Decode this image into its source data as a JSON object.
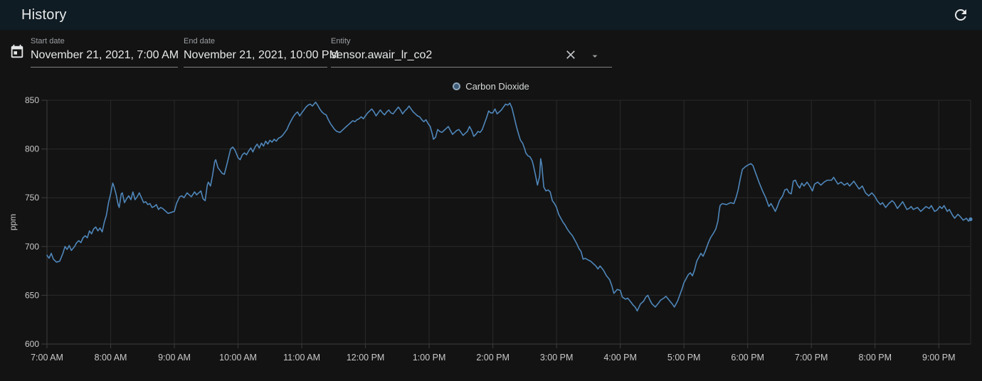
{
  "header": {
    "title": "History",
    "refresh_tooltip": "refresh"
  },
  "filters": {
    "start_date": {
      "label": "Start date",
      "value": "November 21, 2021, 7:00 AM"
    },
    "end_date": {
      "label": "End date",
      "value": "November 21, 2021, 10:00 PM"
    },
    "entity": {
      "label": "Entity",
      "value": "sensor.awair_lr_co2"
    }
  },
  "legend": {
    "label": "Carbon Dioxide"
  },
  "colors": {
    "header_bg": "#101c23",
    "page_bg": "#131313",
    "line": "#4f87bb",
    "grid": "#2a2a2a",
    "axis": "#3d3d3d",
    "tick_text": "#c9c9c9",
    "legend_marker_fill": "#3d5a76",
    "legend_marker_border": "#8fa6b8"
  },
  "chart_data": {
    "type": "line",
    "title": "",
    "series_name": "Carbon Dioxide",
    "unit": "ppm",
    "ylabel": "ppm",
    "xlabel": "",
    "grid": true,
    "legend_position": "top",
    "ylim": [
      600,
      850
    ],
    "xlim_minutes_after_7am": [
      0,
      870
    ],
    "y_ticks": [
      600,
      650,
      700,
      750,
      800,
      850
    ],
    "x_ticks": [
      {
        "t": 0,
        "label": "7:00 AM"
      },
      {
        "t": 60,
        "label": "8:00 AM"
      },
      {
        "t": 120,
        "label": "9:00 AM"
      },
      {
        "t": 180,
        "label": "10:00 AM"
      },
      {
        "t": 240,
        "label": "11:00 AM"
      },
      {
        "t": 300,
        "label": "12:00 PM"
      },
      {
        "t": 360,
        "label": "1:00 PM"
      },
      {
        "t": 420,
        "label": "2:00 PM"
      },
      {
        "t": 480,
        "label": "3:00 PM"
      },
      {
        "t": 540,
        "label": "4:00 PM"
      },
      {
        "t": 600,
        "label": "5:00 PM"
      },
      {
        "t": 660,
        "label": "6:00 PM"
      },
      {
        "t": 720,
        "label": "7:00 PM"
      },
      {
        "t": 780,
        "label": "8:00 PM"
      },
      {
        "t": 840,
        "label": "9:00 PM"
      }
    ],
    "points_t_ppm": [
      [
        0,
        691
      ],
      [
        2,
        688
      ],
      [
        4,
        693
      ],
      [
        6,
        687
      ],
      [
        9,
        684
      ],
      [
        12,
        685
      ],
      [
        15,
        693
      ],
      [
        17,
        700
      ],
      [
        19,
        697
      ],
      [
        21,
        701
      ],
      [
        23,
        696
      ],
      [
        26,
        700
      ],
      [
        28,
        704
      ],
      [
        30,
        706
      ],
      [
        32,
        704
      ],
      [
        34,
        709
      ],
      [
        36,
        711
      ],
      [
        38,
        709
      ],
      [
        40,
        716
      ],
      [
        42,
        713
      ],
      [
        44,
        718
      ],
      [
        46,
        720
      ],
      [
        48,
        716
      ],
      [
        50,
        719
      ],
      [
        52,
        715
      ],
      [
        54,
        725
      ],
      [
        56,
        732
      ],
      [
        58,
        745
      ],
      [
        60,
        754
      ],
      [
        61,
        760
      ],
      [
        62,
        765
      ],
      [
        63,
        762
      ],
      [
        65,
        754
      ],
      [
        67,
        743
      ],
      [
        68,
        740
      ],
      [
        70,
        754
      ],
      [
        71,
        755
      ],
      [
        73,
        745
      ],
      [
        75,
        749
      ],
      [
        77,
        752
      ],
      [
        79,
        748
      ],
      [
        81,
        756
      ],
      [
        83,
        748
      ],
      [
        85,
        751
      ],
      [
        87,
        755
      ],
      [
        89,
        750
      ],
      [
        91,
        745
      ],
      [
        93,
        746
      ],
      [
        95,
        743
      ],
      [
        97,
        744
      ],
      [
        99,
        740
      ],
      [
        101,
        741
      ],
      [
        103,
        743
      ],
      [
        105,
        738
      ],
      [
        107,
        740
      ],
      [
        109,
        739
      ],
      [
        112,
        736
      ],
      [
        114,
        734
      ],
      [
        117,
        735
      ],
      [
        120,
        736
      ],
      [
        122,
        744
      ],
      [
        125,
        751
      ],
      [
        127,
        752
      ],
      [
        129,
        750
      ],
      [
        132,
        755
      ],
      [
        134,
        753
      ],
      [
        136,
        751
      ],
      [
        139,
        756
      ],
      [
        141,
        753
      ],
      [
        143,
        755
      ],
      [
        145,
        757
      ],
      [
        147,
        749
      ],
      [
        149,
        747
      ],
      [
        151,
        763
      ],
      [
        152,
        766
      ],
      [
        154,
        762
      ],
      [
        156,
        773
      ],
      [
        158,
        787
      ],
      [
        159,
        789
      ],
      [
        161,
        781
      ],
      [
        163,
        778
      ],
      [
        165,
        775
      ],
      [
        167,
        774
      ],
      [
        169,
        782
      ],
      [
        171,
        791
      ],
      [
        173,
        800
      ],
      [
        175,
        802
      ],
      [
        177,
        799
      ],
      [
        180,
        791
      ],
      [
        182,
        789
      ],
      [
        184,
        794
      ],
      [
        186,
        796
      ],
      [
        188,
        794
      ],
      [
        190,
        798
      ],
      [
        192,
        801
      ],
      [
        194,
        797
      ],
      [
        196,
        802
      ],
      [
        198,
        805
      ],
      [
        200,
        801
      ],
      [
        202,
        806
      ],
      [
        204,
        803
      ],
      [
        206,
        808
      ],
      [
        208,
        805
      ],
      [
        210,
        809
      ],
      [
        212,
        807
      ],
      [
        214,
        810
      ],
      [
        216,
        808
      ],
      [
        218,
        811
      ],
      [
        220,
        812
      ],
      [
        222,
        814
      ],
      [
        224,
        817
      ],
      [
        226,
        820
      ],
      [
        228,
        825
      ],
      [
        230,
        829
      ],
      [
        232,
        833
      ],
      [
        234,
        836
      ],
      [
        236,
        838
      ],
      [
        238,
        834
      ],
      [
        240,
        837
      ],
      [
        242,
        840
      ],
      [
        244,
        843
      ],
      [
        246,
        845
      ],
      [
        248,
        846
      ],
      [
        250,
        844
      ],
      [
        253,
        848
      ],
      [
        255,
        845
      ],
      [
        257,
        841
      ],
      [
        259,
        838
      ],
      [
        261,
        836
      ],
      [
        263,
        835
      ],
      [
        265,
        830
      ],
      [
        267,
        826
      ],
      [
        269,
        823
      ],
      [
        271,
        820
      ],
      [
        273,
        818
      ],
      [
        276,
        817
      ],
      [
        278,
        819
      ],
      [
        280,
        821
      ],
      [
        282,
        823
      ],
      [
        284,
        825
      ],
      [
        286,
        827
      ],
      [
        288,
        829
      ],
      [
        290,
        828
      ],
      [
        292,
        830
      ],
      [
        294,
        831
      ],
      [
        296,
        833
      ],
      [
        298,
        831
      ],
      [
        300,
        834
      ],
      [
        302,
        837
      ],
      [
        304,
        839
      ],
      [
        306,
        841
      ],
      [
        308,
        838
      ],
      [
        310,
        834
      ],
      [
        312,
        837
      ],
      [
        314,
        840
      ],
      [
        316,
        837
      ],
      [
        318,
        835
      ],
      [
        320,
        838
      ],
      [
        322,
        840
      ],
      [
        324,
        837
      ],
      [
        326,
        836
      ],
      [
        328,
        839
      ],
      [
        331,
        843
      ],
      [
        333,
        840
      ],
      [
        335,
        836
      ],
      [
        337,
        839
      ],
      [
        339,
        841
      ],
      [
        341,
        844
      ],
      [
        343,
        841
      ],
      [
        345,
        838
      ],
      [
        347,
        836
      ],
      [
        349,
        834
      ],
      [
        351,
        833
      ],
      [
        353,
        830
      ],
      [
        355,
        828
      ],
      [
        357,
        830
      ],
      [
        359,
        826
      ],
      [
        361,
        823
      ],
      [
        363,
        815
      ],
      [
        364,
        810
      ],
      [
        366,
        812
      ],
      [
        368,
        820
      ],
      [
        370,
        818
      ],
      [
        372,
        817
      ],
      [
        374,
        819
      ],
      [
        376,
        821
      ],
      [
        378,
        823
      ],
      [
        380,
        819
      ],
      [
        382,
        815
      ],
      [
        384,
        817
      ],
      [
        386,
        819
      ],
      [
        388,
        820
      ],
      [
        390,
        817
      ],
      [
        392,
        814
      ],
      [
        394,
        816
      ],
      [
        396,
        818
      ],
      [
        398,
        823
      ],
      [
        400,
        819
      ],
      [
        402,
        813
      ],
      [
        404,
        815
      ],
      [
        406,
        818
      ],
      [
        408,
        817
      ],
      [
        410,
        820
      ],
      [
        412,
        826
      ],
      [
        414,
        832
      ],
      [
        416,
        839
      ],
      [
        418,
        837
      ],
      [
        420,
        837
      ],
      [
        422,
        841
      ],
      [
        424,
        836
      ],
      [
        426,
        838
      ],
      [
        428,
        840
      ],
      [
        430,
        843
      ],
      [
        432,
        846
      ],
      [
        434,
        845
      ],
      [
        436,
        847
      ],
      [
        438,
        842
      ],
      [
        440,
        833
      ],
      [
        442,
        824
      ],
      [
        444,
        816
      ],
      [
        446,
        809
      ],
      [
        448,
        806
      ],
      [
        450,
        800
      ],
      [
        451,
        796
      ],
      [
        453,
        793
      ],
      [
        455,
        792
      ],
      [
        457,
        788
      ],
      [
        458,
        784
      ],
      [
        460,
        774
      ],
      [
        462,
        763
      ],
      [
        464,
        772
      ],
      [
        465,
        790
      ],
      [
        466,
        784
      ],
      [
        468,
        761
      ],
      [
        470,
        757
      ],
      [
        472,
        758
      ],
      [
        474,
        756
      ],
      [
        476,
        747
      ],
      [
        478,
        744
      ],
      [
        480,
        740
      ],
      [
        482,
        733
      ],
      [
        484,
        729
      ],
      [
        486,
        725
      ],
      [
        488,
        722
      ],
      [
        490,
        718
      ],
      [
        492,
        715
      ],
      [
        495,
        711
      ],
      [
        497,
        707
      ],
      [
        499,
        703
      ],
      [
        501,
        698
      ],
      [
        503,
        695
      ],
      [
        505,
        687
      ],
      [
        507,
        688
      ],
      [
        510,
        686
      ],
      [
        512,
        685
      ],
      [
        514,
        683
      ],
      [
        517,
        680
      ],
      [
        519,
        677
      ],
      [
        521,
        680
      ],
      [
        524,
        676
      ],
      [
        527,
        670
      ],
      [
        530,
        666
      ],
      [
        532,
        660
      ],
      [
        534,
        652
      ],
      [
        537,
        656
      ],
      [
        540,
        655
      ],
      [
        542,
        648
      ],
      [
        545,
        646
      ],
      [
        547,
        647
      ],
      [
        550,
        643
      ],
      [
        552,
        640
      ],
      [
        554,
        638
      ],
      [
        556,
        634
      ],
      [
        559,
        641
      ],
      [
        562,
        644
      ],
      [
        564,
        648
      ],
      [
        566,
        650
      ],
      [
        568,
        645
      ],
      [
        570,
        641
      ],
      [
        573,
        638
      ],
      [
        576,
        642
      ],
      [
        578,
        645
      ],
      [
        581,
        647
      ],
      [
        583,
        649
      ],
      [
        586,
        645
      ],
      [
        589,
        641
      ],
      [
        591,
        638
      ],
      [
        594,
        644
      ],
      [
        596,
        650
      ],
      [
        598,
        656
      ],
      [
        600,
        663
      ],
      [
        602,
        667
      ],
      [
        604,
        671
      ],
      [
        606,
        673
      ],
      [
        608,
        670
      ],
      [
        610,
        676
      ],
      [
        612,
        685
      ],
      [
        614,
        689
      ],
      [
        616,
        693
      ],
      [
        618,
        690
      ],
      [
        620,
        695
      ],
      [
        623,
        704
      ],
      [
        625,
        709
      ],
      [
        628,
        714
      ],
      [
        630,
        718
      ],
      [
        632,
        726
      ],
      [
        633,
        735
      ],
      [
        634,
        742
      ],
      [
        636,
        744
      ],
      [
        640,
        743
      ],
      [
        644,
        745
      ],
      [
        647,
        744
      ],
      [
        649,
        750
      ],
      [
        651,
        758
      ],
      [
        653,
        769
      ],
      [
        655,
        779
      ],
      [
        658,
        782
      ],
      [
        661,
        784
      ],
      [
        663,
        785
      ],
      [
        665,
        783
      ],
      [
        668,
        774
      ],
      [
        671,
        765
      ],
      [
        674,
        757
      ],
      [
        677,
        750
      ],
      [
        680,
        741
      ],
      [
        682,
        744
      ],
      [
        684,
        740
      ],
      [
        686,
        736
      ],
      [
        688,
        741
      ],
      [
        690,
        747
      ],
      [
        693,
        752
      ],
      [
        695,
        758
      ],
      [
        697,
        759
      ],
      [
        699,
        755
      ],
      [
        701,
        754
      ],
      [
        703,
        767
      ],
      [
        705,
        768
      ],
      [
        707,
        763
      ],
      [
        709,
        760
      ],
      [
        711,
        765
      ],
      [
        713,
        762
      ],
      [
        716,
        766
      ],
      [
        719,
        761
      ],
      [
        721,
        757
      ],
      [
        723,
        764
      ],
      [
        726,
        766
      ],
      [
        729,
        763
      ],
      [
        732,
        766
      ],
      [
        735,
        768
      ],
      [
        739,
        768
      ],
      [
        741,
        771
      ],
      [
        745,
        764
      ],
      [
        748,
        766
      ],
      [
        751,
        763
      ],
      [
        754,
        765
      ],
      [
        756,
        762
      ],
      [
        760,
        767
      ],
      [
        763,
        762
      ],
      [
        765,
        759
      ],
      [
        768,
        762
      ],
      [
        771,
        755
      ],
      [
        774,
        752
      ],
      [
        777,
        755
      ],
      [
        780,
        751
      ],
      [
        782,
        747
      ],
      [
        785,
        743
      ],
      [
        787,
        745
      ],
      [
        790,
        740
      ],
      [
        793,
        744
      ],
      [
        796,
        747
      ],
      [
        798,
        745
      ],
      [
        801,
        739
      ],
      [
        804,
        743
      ],
      [
        806,
        746
      ],
      [
        810,
        738
      ],
      [
        812,
        739
      ],
      [
        814,
        741
      ],
      [
        816,
        738
      ],
      [
        820,
        740
      ],
      [
        823,
        736
      ],
      [
        825,
        738
      ],
      [
        828,
        741
      ],
      [
        831,
        739
      ],
      [
        833,
        742
      ],
      [
        836,
        736
      ],
      [
        838,
        737
      ],
      [
        841,
        741
      ],
      [
        843,
        739
      ],
      [
        845,
        742
      ],
      [
        848,
        736
      ],
      [
        850,
        738
      ],
      [
        853,
        732
      ],
      [
        855,
        729
      ],
      [
        858,
        733
      ],
      [
        860,
        731
      ],
      [
        863,
        727
      ],
      [
        866,
        729
      ],
      [
        868,
        726
      ],
      [
        870,
        728
      ]
    ]
  }
}
